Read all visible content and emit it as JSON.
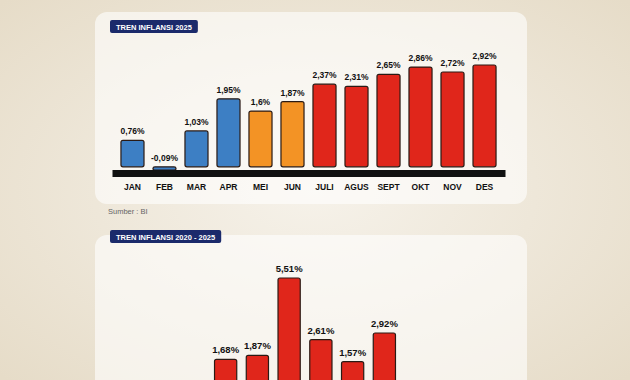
{
  "chart_data": [
    {
      "type": "bar",
      "title": "TREN INFLANSI 2025",
      "source": "Sumber : BI",
      "categories": [
        "JAN",
        "FEB",
        "MAR",
        "APR",
        "MEI",
        "JUN",
        "JULI",
        "AGUS",
        "SEPT",
        "OKT",
        "NOV",
        "DES"
      ],
      "values": [
        0.76,
        -0.09,
        1.03,
        1.95,
        1.6,
        1.87,
        2.37,
        2.31,
        2.65,
        2.86,
        2.72,
        2.92
      ],
      "value_labels": [
        "0,76%",
        "-0,09%",
        "1,03%",
        "1,95%",
        "1,6%",
        "1,87%",
        "2,37%",
        "2,31%",
        "2,65%",
        "2,86%",
        "2,72%",
        "2,92%"
      ],
      "colors": [
        "#3d7fc4",
        "#3d7fc4",
        "#3d7fc4",
        "#3d7fc4",
        "#f39325",
        "#f39325",
        "#e0261b",
        "#e0261b",
        "#e0261b",
        "#e0261b",
        "#e0261b",
        "#e0261b"
      ],
      "data_labels": true,
      "tick_labels": "x"
    },
    {
      "type": "bar",
      "title": "TREN INFLANSI 2020 - 2025",
      "categories": [
        null,
        null,
        null,
        null,
        null,
        null
      ],
      "values": [
        1.68,
        1.87,
        5.51,
        2.61,
        1.57,
        2.92
      ],
      "value_labels": [
        "1,68%",
        "1,87%",
        "5,51%",
        "2,61%",
        "1,57%",
        "2,92%"
      ],
      "color": "#e0261b",
      "data_labels": true,
      "tick_labels": false
    }
  ]
}
